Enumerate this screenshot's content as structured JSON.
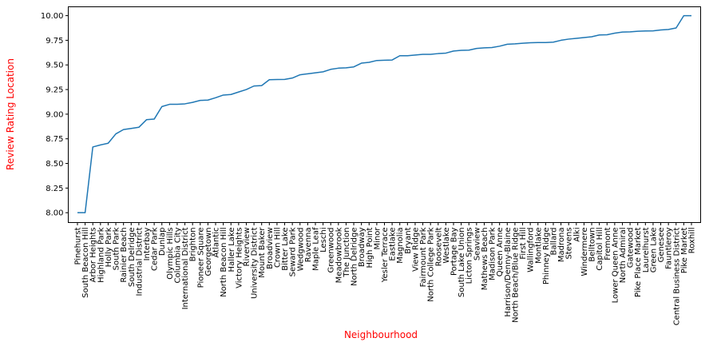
{
  "chart_data": {
    "type": "line",
    "xlabel": "Neighbourhood",
    "ylabel": "Review Rating Location",
    "label_color": "#ff0000",
    "line_color": "#1f77b4",
    "ylim": [
      7.9,
      10.09
    ],
    "yticks": [
      "8.00",
      "8.25",
      "8.50",
      "8.75",
      "9.00",
      "9.25",
      "9.50",
      "9.75",
      "10.00"
    ],
    "grid": false,
    "categories": [
      "Pinehurst",
      "South Beacon Hill",
      "Arbor Heights",
      "Highland Park",
      "Holly Park",
      "South Park",
      "Rainier Beach",
      "South Delridge",
      "Industrial District",
      "Interbay",
      "Cedar Park",
      "Dunlap",
      "Olympic Hills",
      "Columbia City",
      "International District",
      "Brighton",
      "Pioneer Square",
      "Georgetown",
      "Atlantic",
      "North Beacon Hill",
      "Haller Lake",
      "Victory Heights",
      "Riverview",
      "University District",
      "Mount Baker",
      "Broadview",
      "Crown Hill",
      "Bitter Lake",
      "Seward Park",
      "Wedgwood",
      "Ravenna",
      "Maple Leaf",
      "Leschi",
      "Greenwood",
      "Meadowbrook",
      "The Junction",
      "North Delridge",
      "Broadway",
      "High Point",
      "Minor",
      "Yesler Terrace",
      "Eastlake",
      "Magnolia",
      "Bryant",
      "View Ridge",
      "Fairmount Park",
      "North College Park",
      "Roosevelt",
      "Westlake",
      "Portage Bay",
      "South Lake Union",
      "Licton Springs",
      "Seaview",
      "Mathews Beach",
      "Madison Park",
      "Queen Anne",
      "Harrison/Denny-Blaine",
      "North Beach/Blue Ridge",
      "First Hill",
      "Wallingford",
      "Montlake",
      "Phinney Ridge",
      "Ballard",
      "Madrona",
      "Stevens",
      "Alki",
      "Windermere",
      "Belltown",
      "Capitol Hill",
      "Fremont",
      "Lower Queen Anne",
      "North Admiral",
      "Gatewood",
      "Pike Place Market",
      "Laurelhurst",
      "Green Lake",
      "Genesee",
      "Fauntleroy",
      "Central Business District",
      "Pike Market",
      "Roxhill"
    ],
    "values": [
      8.0,
      8.0,
      8.667,
      8.688,
      8.705,
      8.8,
      8.844,
      8.855,
      8.867,
      8.944,
      8.95,
      9.077,
      9.1,
      9.1,
      9.105,
      9.12,
      9.14,
      9.143,
      9.167,
      9.194,
      9.2,
      9.225,
      9.25,
      9.286,
      9.29,
      9.35,
      9.352,
      9.353,
      9.367,
      9.4,
      9.41,
      9.42,
      9.43,
      9.455,
      9.467,
      9.471,
      9.48,
      9.518,
      9.526,
      9.545,
      9.548,
      9.55,
      9.593,
      9.593,
      9.6,
      9.607,
      9.607,
      9.615,
      9.62,
      9.641,
      9.648,
      9.65,
      9.667,
      9.673,
      9.676,
      9.69,
      9.71,
      9.714,
      9.72,
      9.725,
      9.727,
      9.727,
      9.731,
      9.75,
      9.762,
      9.77,
      9.778,
      9.786,
      9.804,
      9.806,
      9.822,
      9.833,
      9.836,
      9.842,
      9.845,
      9.846,
      9.855,
      9.86,
      9.875,
      10.0,
      10.0
    ]
  }
}
